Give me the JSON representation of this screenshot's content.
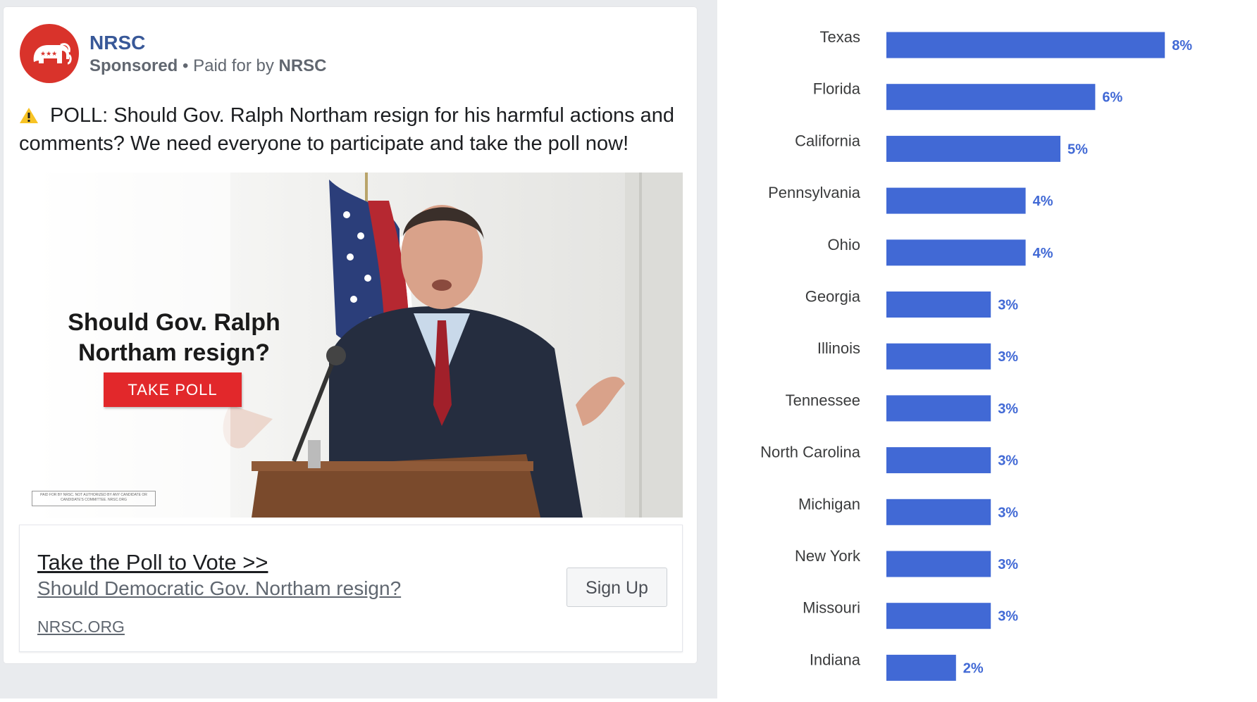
{
  "ad": {
    "page_name": "NRSC",
    "sponsored_label": "Sponsored",
    "paid_for_prefix": "Paid for by",
    "paid_for_name": "NRSC",
    "post_text": "POLL: Should Gov. Ralph Northam resign for his harmful actions and comments? We need everyone to participate and take the poll now!",
    "image": {
      "headline": "Should Gov. Ralph Northam resign?",
      "button_label": "TAKE POLL",
      "disclaimer": "PAID FOR BY NRSC. NOT AUTHORIZED BY ANY CANDIDATE OR CANDIDATE'S COMMITTEE. NRSC.ORG"
    },
    "link": {
      "title": "Take the Poll to Vote >>",
      "description": "Should Democratic Gov. Northam resign?",
      "domain": "NRSC.ORG",
      "cta_label": "Sign Up"
    },
    "colors": {
      "brand_red": "#d9332b",
      "link_blue": "#385898"
    },
    "icons": [
      "elephant-logo-icon",
      "warning-icon"
    ]
  },
  "chart_data": {
    "type": "bar",
    "orientation": "horizontal",
    "categories": [
      "Texas",
      "Florida",
      "California",
      "Pennsylvania",
      "Ohio",
      "Georgia",
      "Illinois",
      "Tennessee",
      "North Carolina",
      "Michigan",
      "New York",
      "Missouri",
      "Indiana"
    ],
    "values": [
      8,
      6,
      5,
      4,
      4,
      3,
      3,
      3,
      3,
      3,
      3,
      3,
      2
    ],
    "value_labels": [
      "8%",
      "6%",
      "5%",
      "4%",
      "4%",
      "3%",
      "3%",
      "3%",
      "3%",
      "3%",
      "3%",
      "3%",
      "2%"
    ],
    "unit": "%",
    "bar_color": "#4169d5",
    "label_color": "#4169d5",
    "title": "",
    "grid": false
  }
}
